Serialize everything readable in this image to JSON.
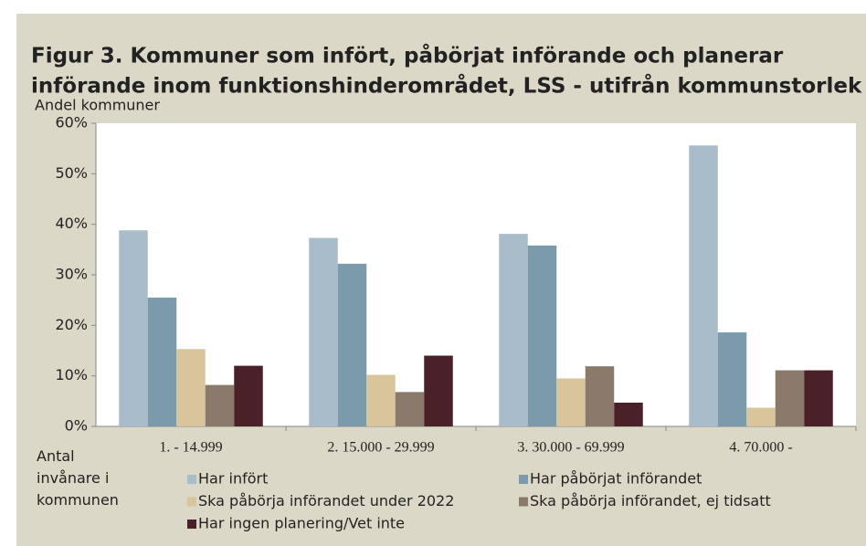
{
  "chart_data": {
    "type": "bar",
    "title": [
      "Figur 3. Kommuner som infört, påbörjat införande och planerar",
      "införande inom funktionshinderområdet, LSS - utifrån kommunstorlek"
    ],
    "y_label": "Andel kommuner",
    "x_label": "Antal invånare i kommunen",
    "categories": [
      "1. - 14.999",
      "2. 15.000 - 29.999",
      "3. 30.000 - 69.999",
      "4. 70.000 -"
    ],
    "series": [
      {
        "name": "Har infört",
        "color": "#a8bcc9",
        "values": [
          38.8,
          37.3,
          38.1,
          55.6
        ]
      },
      {
        "name": "Har påbörjat införandet",
        "color": "#7b9aac",
        "values": [
          25.5,
          32.2,
          35.8,
          18.6
        ]
      },
      {
        "name": "Ska påbörja införandet under 2022",
        "color": "#d9c59b",
        "values": [
          15.3,
          10.2,
          9.5,
          3.7
        ]
      },
      {
        "name": "Ska påbörja införandet, ej tidsatt",
        "color": "#8b7a6b",
        "values": [
          8.2,
          6.8,
          11.9,
          11.1
        ]
      },
      {
        "name": "Har ingen planering/Vet inte",
        "color": "#4b2129",
        "values": [
          12.0,
          14.0,
          4.7,
          11.1
        ]
      }
    ],
    "ylim": [
      0,
      60
    ],
    "yticks": [
      {
        "value": 0,
        "label": "0%"
      },
      {
        "value": 10,
        "label": "10%"
      },
      {
        "value": 20,
        "label": "20%"
      },
      {
        "value": 30,
        "label": "30%"
      },
      {
        "value": 40,
        "label": "40%"
      },
      {
        "value": 50,
        "label": "50%"
      },
      {
        "value": 60,
        "label": "60%"
      }
    ],
    "grid": false
  }
}
